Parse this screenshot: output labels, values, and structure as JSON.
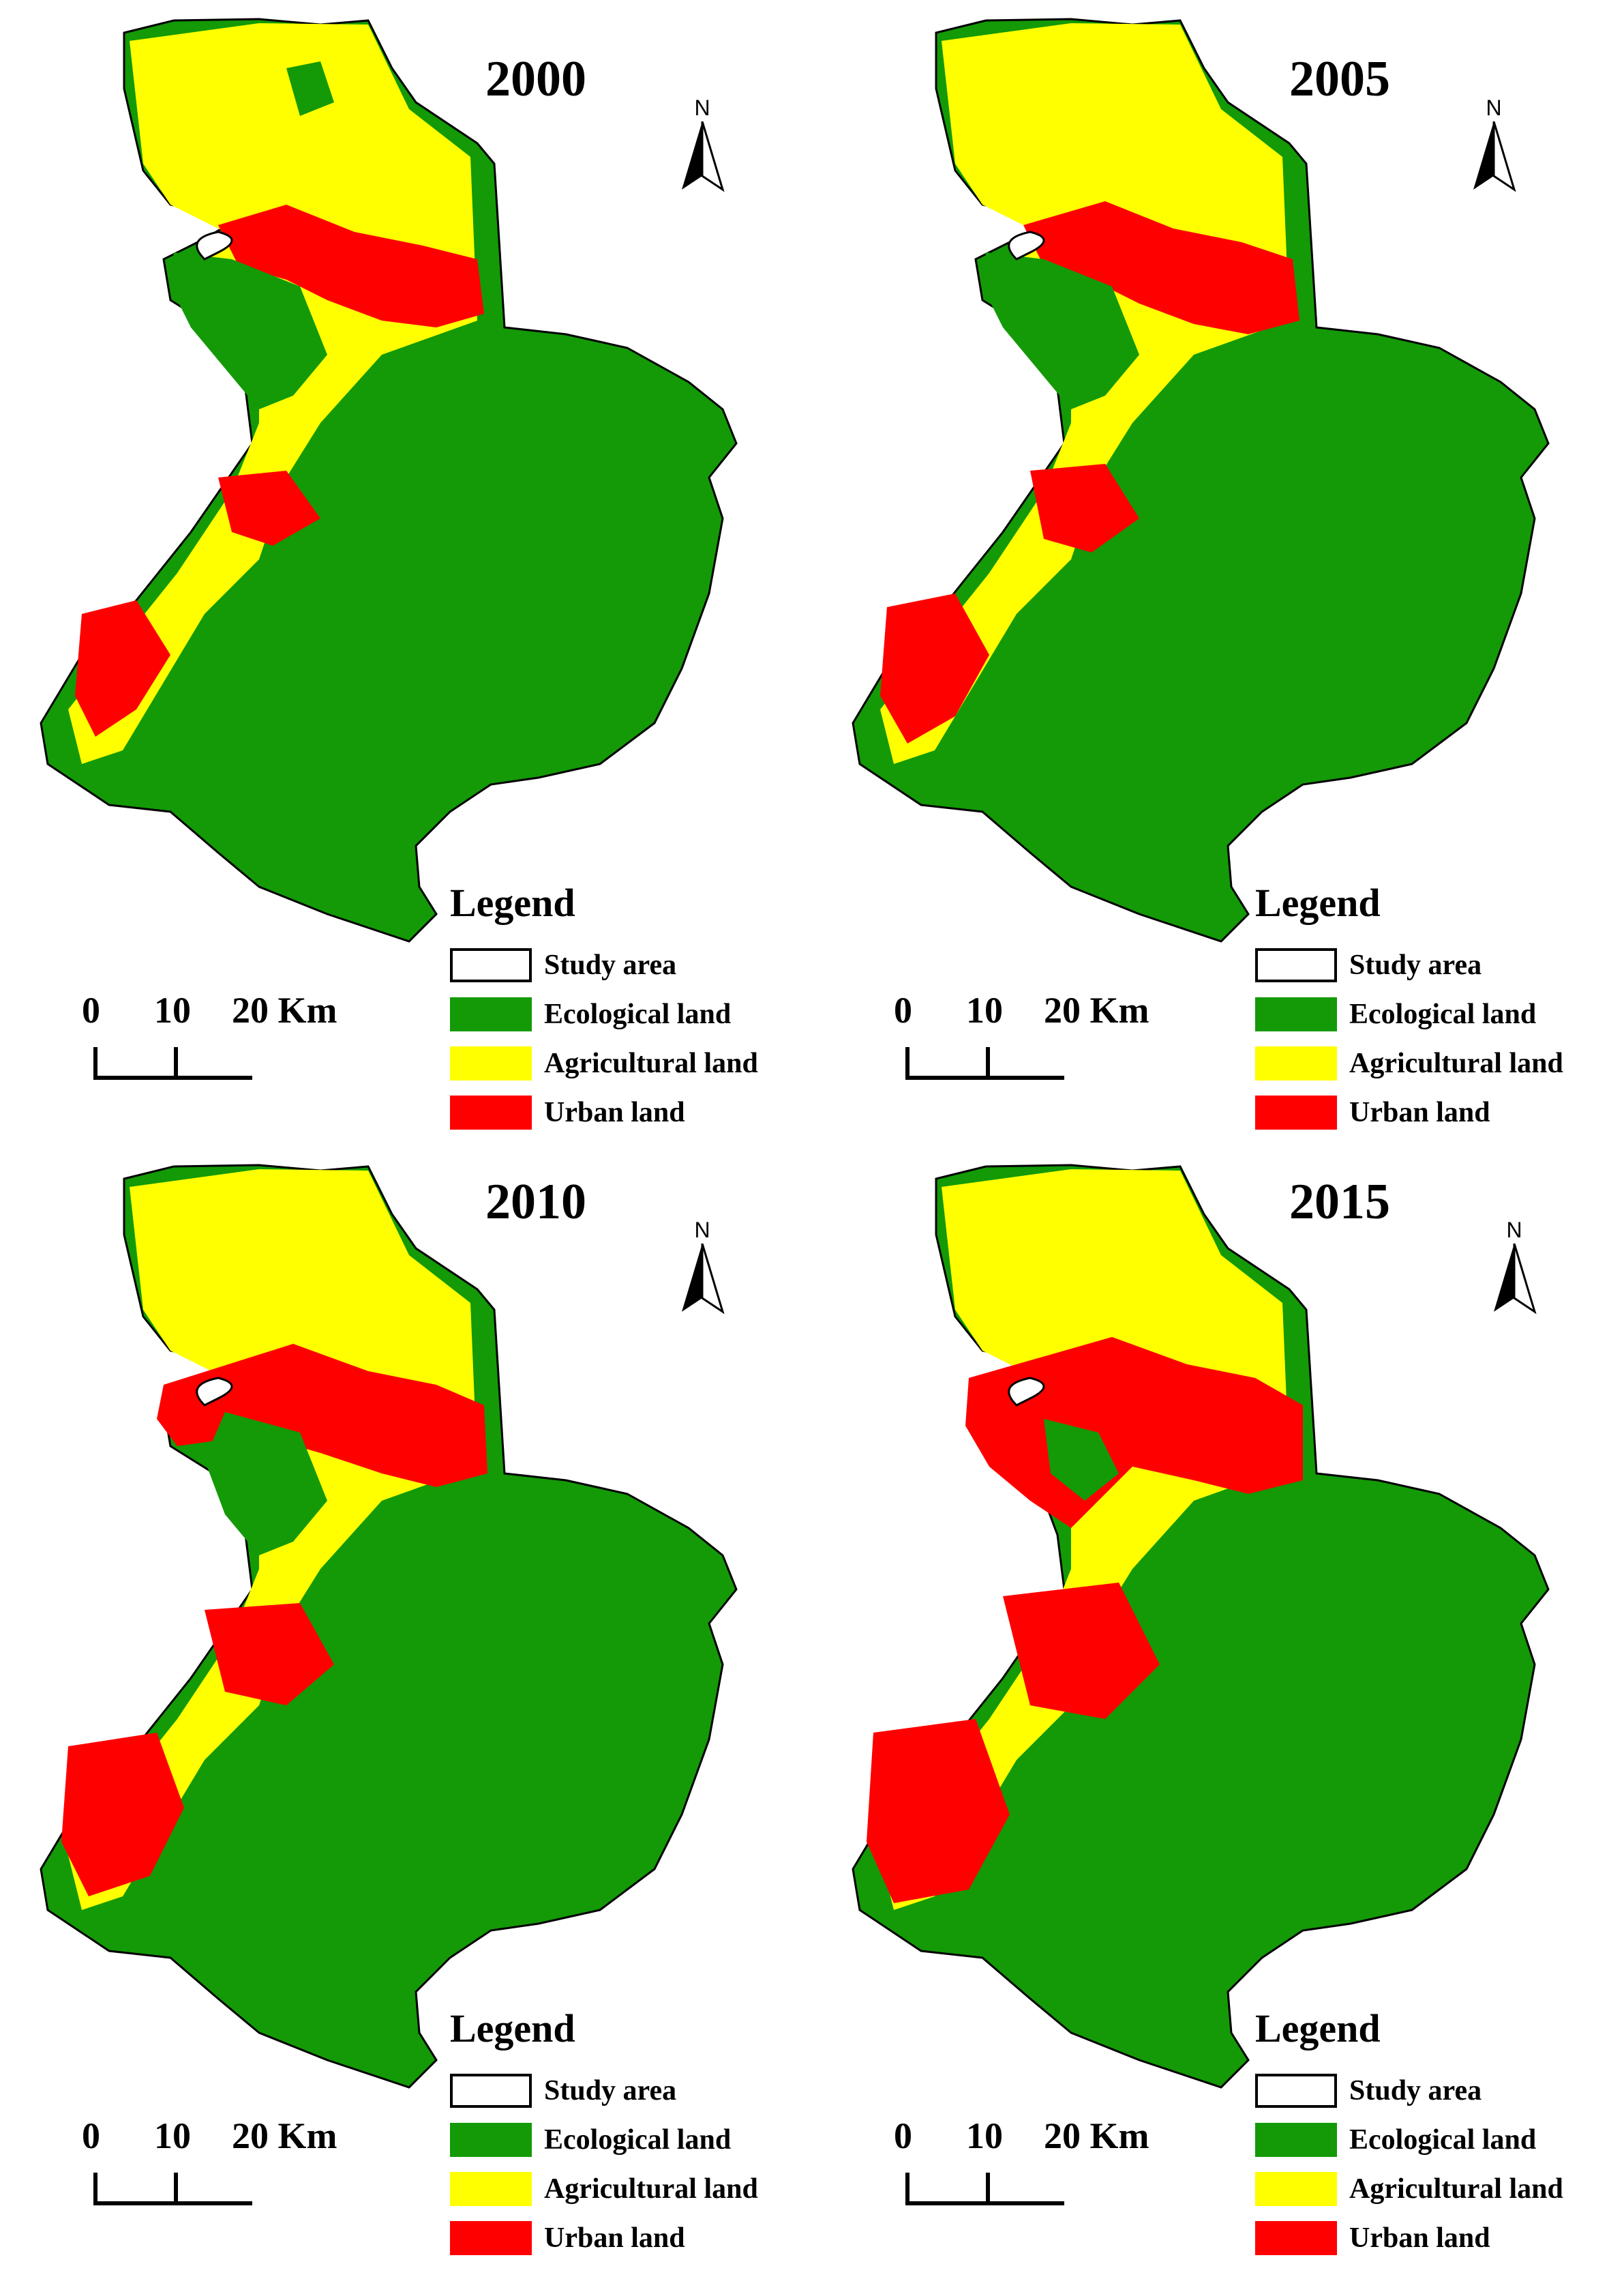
{
  "colors": {
    "ecological": "#139a06",
    "agricultural": "#ffff00",
    "urban": "#ff0000",
    "study_area_border": "#000000"
  },
  "north_label": "N",
  "scale_bar": {
    "ticks": [
      "0",
      "10",
      "20 Km"
    ]
  },
  "legend": {
    "title": "Legend",
    "items": [
      {
        "label": "Study area",
        "color": "#ffffff"
      },
      {
        "label": "Ecological land",
        "color": "#139a06"
      },
      {
        "label": "Agricultural land",
        "color": "#ffff00"
      },
      {
        "label": "Urban land",
        "color": "#ff0000"
      }
    ]
  },
  "panels": [
    {
      "year": "2000"
    },
    {
      "year": "2005"
    },
    {
      "year": "2010"
    },
    {
      "year": "2015"
    }
  ]
}
